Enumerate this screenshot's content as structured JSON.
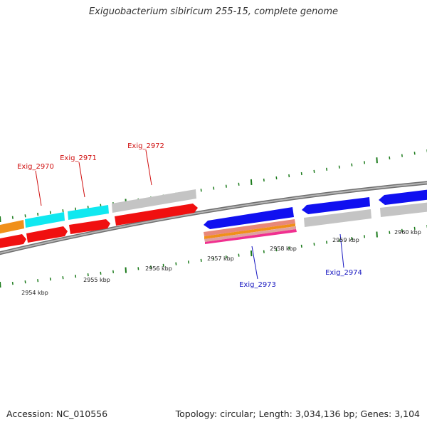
{
  "title": "Exiguobacterium sibiricum 255-15, complete genome",
  "footer": {
    "accession": "Accession: NC_010556",
    "summary": "Topology: circular; Length: 3,034,136 bp; Genes: 3,104"
  },
  "colors": {
    "backbone": "#8a8a8a",
    "tick": "#1a7a1a",
    "red": "#f01010",
    "cyan": "#10e8f0",
    "orange": "#f0901a",
    "gray_gene": "#c4c4c4",
    "blue": "#1010f0",
    "label_red": "#d01010",
    "label_blue": "#1515c0"
  },
  "scale_labels": [
    "2954 kbp",
    "2955 kbp",
    "2956 kbp",
    "2957 kbp",
    "2958 kbp",
    "2959 kbp",
    "2960 kbp"
  ],
  "gene_labels": [
    "Exig_2970",
    "Exig_2971",
    "Exig_2972",
    "Exig_2973",
    "Exig_2974"
  ]
}
